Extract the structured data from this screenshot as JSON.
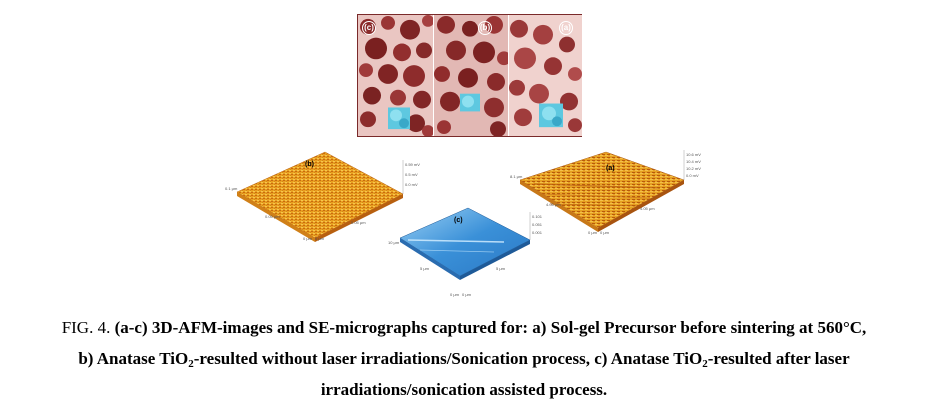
{
  "figure": {
    "sem_labels": [
      "(c)",
      "(b)",
      "(a)"
    ],
    "afm_b": {
      "label": "(b)",
      "z_ticks": [
        "0.59 mV",
        "0.5 mV",
        "0.0 mV"
      ],
      "x_ticks": [
        "0 μm",
        "0.05 μm",
        "0.1 μm"
      ],
      "y_ticks": [
        "0 μm",
        "0.05 μm",
        "0.1 μm"
      ]
    },
    "afm_a": {
      "label": "(a)",
      "z_ticks": [
        "10.6 mV",
        "10.4 mV",
        "10.2 mV",
        "0.0 mV"
      ],
      "x_ticks": [
        "0 μm",
        "4.05 μm",
        "8.1 μm"
      ],
      "y_ticks": [
        "0 μm",
        "4.05 μm",
        "8.1 μm"
      ]
    },
    "afm_c": {
      "label": "(c)",
      "z_ticks": [
        "0.101",
        "0.051",
        "0.001"
      ],
      "x_ticks": [
        "0 μm",
        "5 μm",
        "10 μm"
      ],
      "y_ticks": [
        "0 μm",
        "5 μm",
        "10 μm"
      ]
    },
    "colors": {
      "sem_bg": "#e8c0bc",
      "sem_particle": "#8a2a2a",
      "sem_inset": "#5ec8e0",
      "afm_warm": "#e8a020",
      "afm_warm_dark": "#c86a10",
      "afm_blue": "#3a90d8",
      "afm_blue_light": "#9ad0f4"
    }
  },
  "caption": {
    "lead": "FIG. 4.",
    "part1": "(a-c) 3D-AFM-images and SE-micrographs captured for: a) Sol-gel Precursor before sintering at 560°C,",
    "part2a": "b) Anatase TiO",
    "sub1": "2",
    "part2b": "-resulted without laser irradiations/Sonication process, c) Anatase TiO",
    "sub2": "2",
    "part2c": "-resulted after laser",
    "part3": "irradiations/sonication assisted process."
  }
}
